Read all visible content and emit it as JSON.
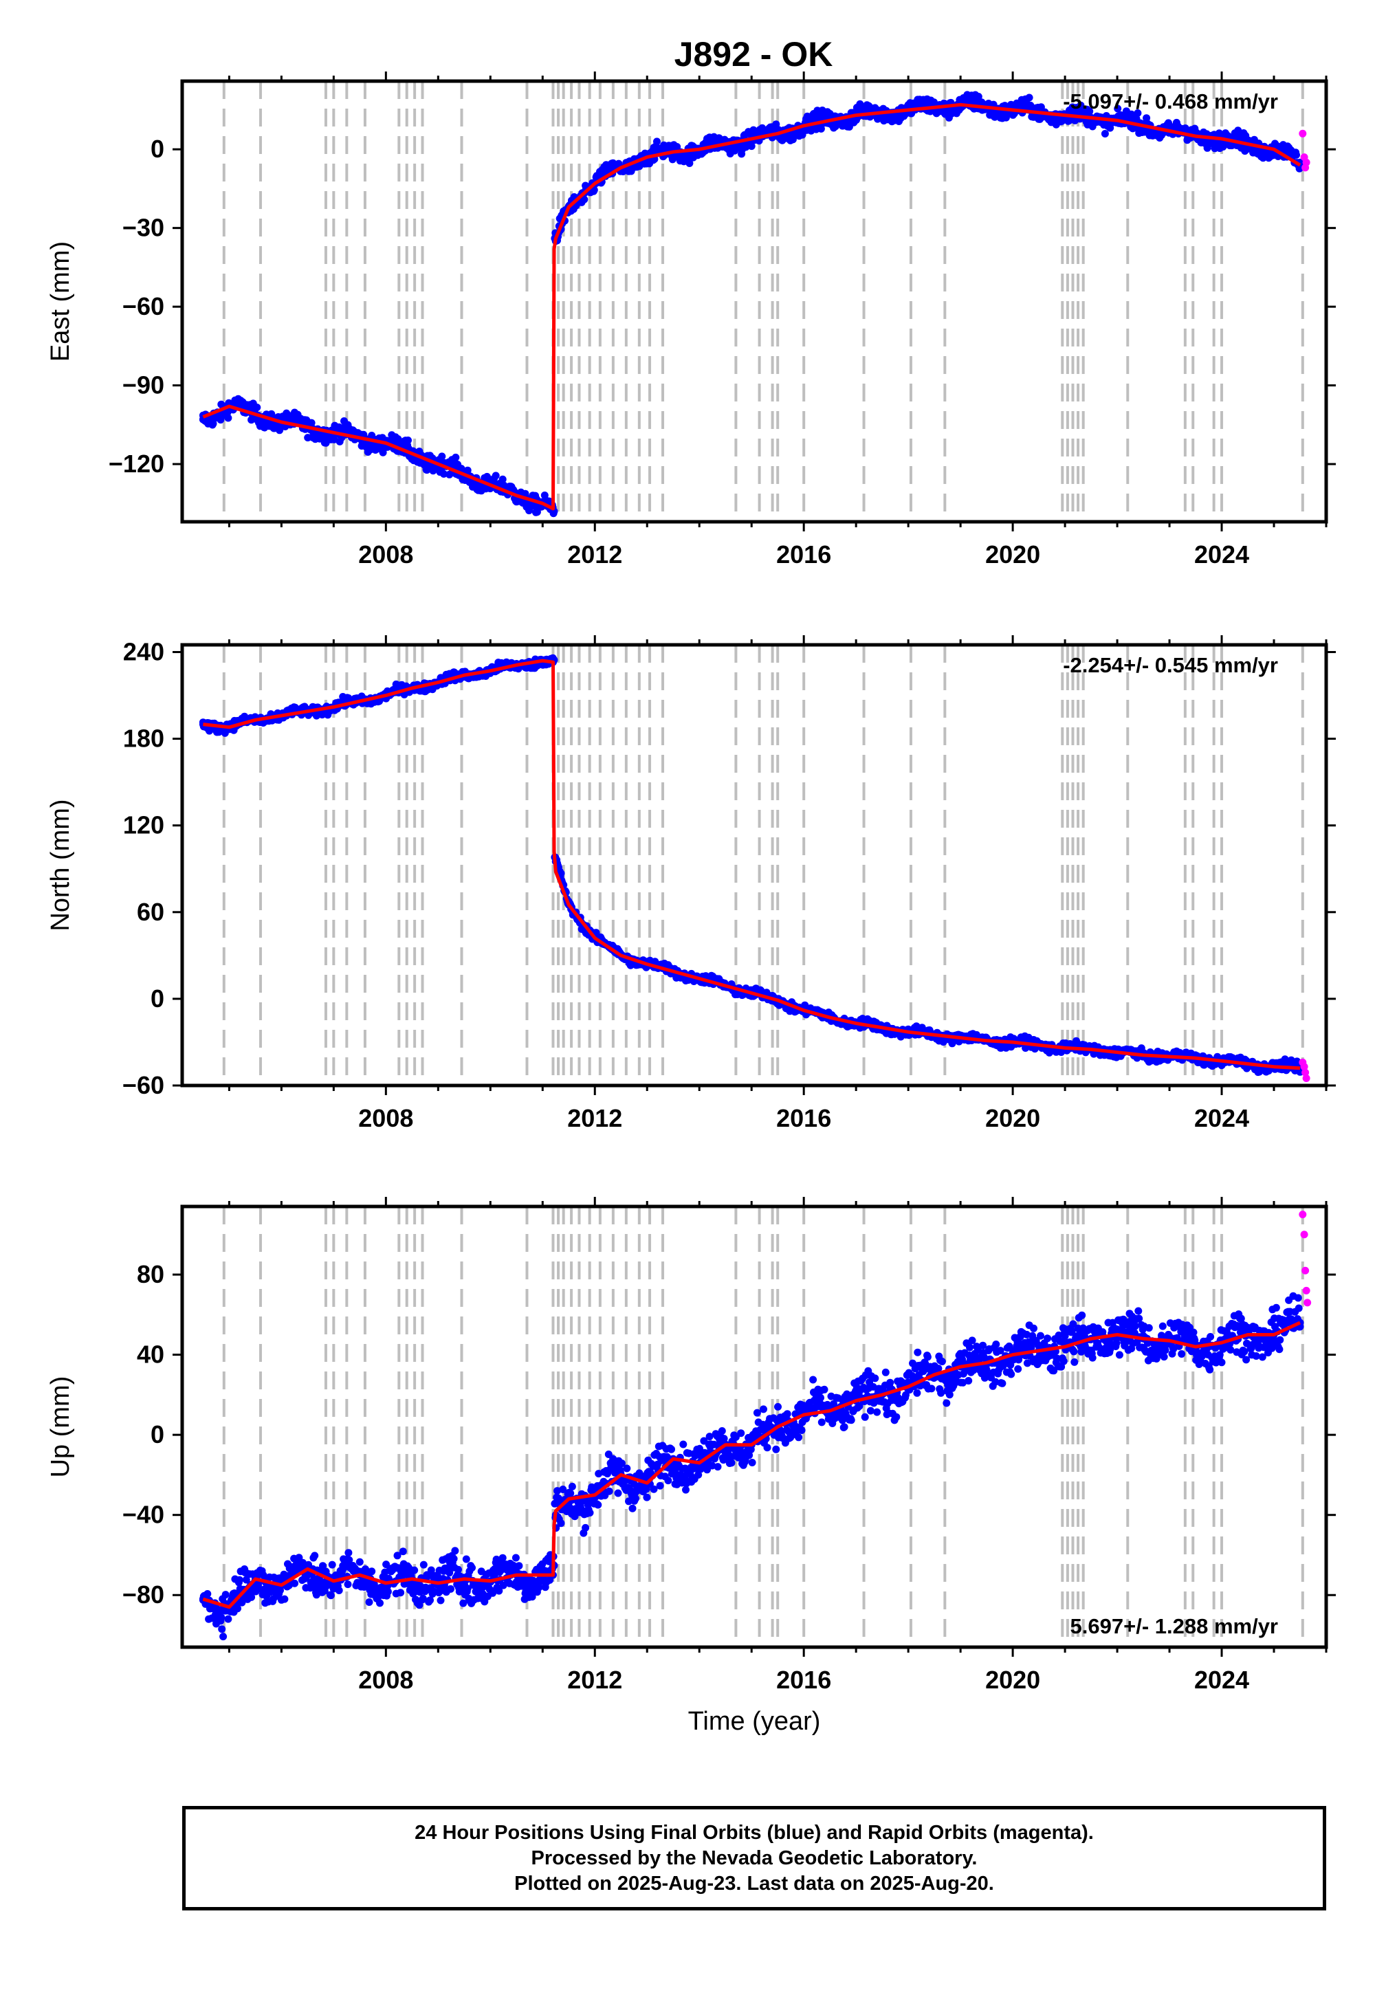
{
  "title": "J892 - OK",
  "colors": {
    "final_orbits": "#0000ff",
    "rapid_orbits": "#ff00ff",
    "model": "#ff0000",
    "event_lines": "#bebebe",
    "frame": "#000000"
  },
  "chart_data": [
    {
      "type": "scatter",
      "name": "east",
      "ylabel": "East (mm)",
      "xlabel": "",
      "xlim": [
        2004.1,
        2026.0
      ],
      "ylim": [
        -142,
        26
      ],
      "xticks": [
        2008,
        2012,
        2016,
        2020,
        2024
      ],
      "yticks": [
        -120,
        -90,
        -60,
        -30,
        0
      ],
      "ytick_labels": [
        "−120",
        "−90",
        "−60",
        "−30",
        "0"
      ],
      "rate_label": "-5.097+/- 0.468 mm/yr",
      "rate_label_position": "top-right",
      "grid": false,
      "step_year": 2011.22,
      "series": [
        {
          "name": "final orbits",
          "kind": "points",
          "x": [
            2004.5,
            2005.0,
            2005.5,
            2006.0,
            2006.5,
            2007.0,
            2007.5,
            2008.0,
            2008.5,
            2009.0,
            2009.5,
            2010.0,
            2010.5,
            2011.0,
            2011.2,
            2011.25,
            2011.5,
            2012.0,
            2012.5,
            2013.0,
            2013.5,
            2014.0,
            2014.5,
            2015.0,
            2015.5,
            2016.0,
            2016.5,
            2017.0,
            2017.5,
            2018.0,
            2018.5,
            2019.0,
            2019.5,
            2020.0,
            2020.5,
            2021.0,
            2021.5,
            2022.0,
            2022.5,
            2023.0,
            2023.5,
            2024.0,
            2024.5,
            2025.0,
            2025.5
          ],
          "y": [
            -103,
            -98,
            -101,
            -104,
            -106,
            -108,
            -110,
            -112,
            -116,
            -120,
            -124,
            -128,
            -132,
            -135,
            -138,
            -35,
            -22,
            -13,
            -7,
            -3,
            -1,
            0,
            2,
            4,
            6,
            9,
            11,
            13,
            14,
            15,
            16,
            17,
            16,
            15,
            14,
            13,
            12,
            11,
            9,
            7,
            5,
            4,
            2,
            0,
            -5
          ]
        },
        {
          "name": "rapid orbits",
          "kind": "points",
          "x": [
            2025.55,
            2025.58,
            2025.6,
            2025.62
          ],
          "y": [
            6,
            -3,
            -7,
            -5
          ]
        },
        {
          "name": "model",
          "kind": "line",
          "x": [
            2004.5,
            2005.0,
            2005.5,
            2006.0,
            2006.5,
            2007.0,
            2007.5,
            2008.0,
            2008.5,
            2009.0,
            2009.5,
            2010.0,
            2010.5,
            2011.0,
            2011.2,
            2011.22,
            2011.25,
            2011.5,
            2012.0,
            2012.5,
            2013.0,
            2013.5,
            2014.0,
            2014.5,
            2015.0,
            2015.5,
            2016.0,
            2016.5,
            2017.0,
            2017.5,
            2018.0,
            2018.5,
            2019.0,
            2019.5,
            2020.0,
            2020.5,
            2021.0,
            2021.5,
            2022.0,
            2022.5,
            2023.0,
            2023.5,
            2024.0,
            2024.5,
            2025.0,
            2025.5
          ],
          "y": [
            -102,
            -98,
            -101,
            -104,
            -106,
            -108,
            -110,
            -112,
            -116,
            -120,
            -124,
            -128,
            -132,
            -135,
            -137,
            -38,
            -34,
            -22,
            -13,
            -7,
            -3,
            -1,
            0,
            2,
            4,
            6,
            9,
            11,
            13,
            14,
            15,
            16,
            17,
            16,
            15,
            14,
            13,
            12,
            11,
            9,
            7,
            5,
            4,
            2,
            0,
            -6
          ]
        }
      ]
    },
    {
      "type": "scatter",
      "name": "north",
      "ylabel": "North (mm)",
      "xlabel": "",
      "xlim": [
        2004.1,
        2026.0
      ],
      "ylim": [
        -60,
        245
      ],
      "xticks": [
        2008,
        2012,
        2016,
        2020,
        2024
      ],
      "yticks": [
        -60,
        0,
        60,
        120,
        180,
        240
      ],
      "ytick_labels": [
        "−60",
        "0",
        "60",
        "120",
        "180",
        "240"
      ],
      "rate_label": "-2.254+/- 0.545 mm/yr",
      "rate_label_position": "top-right",
      "grid": false,
      "step_year": 2011.22,
      "series": [
        {
          "name": "final orbits",
          "kind": "points",
          "x": [
            2004.5,
            2005.0,
            2005.5,
            2006.0,
            2006.5,
            2007.0,
            2007.5,
            2008.0,
            2008.5,
            2009.0,
            2009.5,
            2010.0,
            2010.5,
            2011.0,
            2011.2,
            2011.25,
            2011.5,
            2012.0,
            2012.5,
            2013.0,
            2013.5,
            2014.0,
            2014.5,
            2015.0,
            2015.5,
            2016.0,
            2016.5,
            2017.0,
            2017.5,
            2018.0,
            2018.5,
            2019.0,
            2019.5,
            2020.0,
            2020.5,
            2021.0,
            2021.5,
            2022.0,
            2022.5,
            2023.0,
            2023.5,
            2024.0,
            2024.5,
            2025.0,
            2025.5
          ],
          "y": [
            190,
            188,
            193,
            196,
            199,
            202,
            206,
            210,
            215,
            219,
            224,
            227,
            231,
            234,
            233,
            95,
            65,
            42,
            30,
            24,
            19,
            14,
            9,
            4,
            -1,
            -8,
            -13,
            -17,
            -20,
            -23,
            -25,
            -27,
            -29,
            -30,
            -32,
            -34,
            -35,
            -37,
            -39,
            -40,
            -41,
            -43,
            -45,
            -47,
            -48
          ]
        },
        {
          "name": "rapid orbits",
          "kind": "points",
          "x": [
            2025.55,
            2025.58,
            2025.6,
            2025.62
          ],
          "y": [
            -44,
            -47,
            -51,
            -55
          ]
        },
        {
          "name": "model",
          "kind": "line",
          "x": [
            2004.5,
            2005.0,
            2005.5,
            2006.0,
            2006.5,
            2007.0,
            2007.5,
            2008.0,
            2008.5,
            2009.0,
            2009.5,
            2010.0,
            2010.5,
            2011.0,
            2011.2,
            2011.22,
            2011.25,
            2011.5,
            2012.0,
            2012.5,
            2013.0,
            2013.5,
            2014.0,
            2014.5,
            2015.0,
            2015.5,
            2016.0,
            2016.5,
            2017.0,
            2017.5,
            2018.0,
            2018.5,
            2019.0,
            2019.5,
            2020.0,
            2020.5,
            2021.0,
            2021.5,
            2022.0,
            2022.5,
            2023.0,
            2023.5,
            2024.0,
            2024.5,
            2025.0,
            2025.5
          ],
          "y": [
            190,
            188,
            193,
            196,
            199,
            202,
            206,
            210,
            215,
            219,
            224,
            227,
            231,
            234,
            233,
            102,
            88,
            65,
            42,
            30,
            24,
            19,
            14,
            9,
            4,
            -1,
            -8,
            -13,
            -17,
            -20,
            -23,
            -25,
            -27,
            -29,
            -30,
            -32,
            -34,
            -35,
            -37,
            -39,
            -40,
            -41,
            -43,
            -45,
            -47,
            -48
          ]
        }
      ]
    },
    {
      "type": "scatter",
      "name": "up",
      "ylabel": "Up (mm)",
      "xlabel": "Time (year)",
      "xlim": [
        2004.1,
        2026.0
      ],
      "ylim": [
        -106,
        114
      ],
      "xticks": [
        2008,
        2012,
        2016,
        2020,
        2024
      ],
      "yticks": [
        -80,
        -40,
        0,
        40,
        80
      ],
      "ytick_labels": [
        "−80",
        "−40",
        "0",
        "40",
        "80"
      ],
      "rate_label": "5.697+/- 1.288 mm/yr",
      "rate_label_position": "bottom-right",
      "grid": false,
      "step_year": 2011.22,
      "series": [
        {
          "name": "final orbits",
          "kind": "points",
          "x": [
            2004.5,
            2005.0,
            2005.5,
            2006.0,
            2006.5,
            2007.0,
            2007.5,
            2008.0,
            2008.5,
            2009.0,
            2009.5,
            2010.0,
            2010.5,
            2011.0,
            2011.2,
            2011.25,
            2011.5,
            2012.0,
            2012.5,
            2013.0,
            2013.5,
            2014.0,
            2014.5,
            2015.0,
            2015.5,
            2016.0,
            2016.5,
            2017.0,
            2017.5,
            2018.0,
            2018.5,
            2019.0,
            2019.5,
            2020.0,
            2020.5,
            2021.0,
            2021.5,
            2022.0,
            2022.5,
            2023.0,
            2023.5,
            2024.0,
            2024.5,
            2025.0,
            2025.5
          ],
          "y": [
            -82,
            -86,
            -72,
            -75,
            -67,
            -73,
            -70,
            -74,
            -72,
            -74,
            -72,
            -73,
            -70,
            -70,
            -70,
            -40,
            -34,
            -30,
            -20,
            -24,
            -12,
            -14,
            -5,
            -5,
            4,
            10,
            12,
            17,
            20,
            24,
            30,
            34,
            36,
            40,
            42,
            44,
            48,
            50,
            48,
            47,
            44,
            46,
            50,
            50,
            56
          ]
        },
        {
          "name": "rapid orbits",
          "kind": "points",
          "x": [
            2025.55,
            2025.58,
            2025.6,
            2025.62,
            2025.64
          ],
          "y": [
            110,
            100,
            82,
            72,
            66
          ]
        },
        {
          "name": "model",
          "kind": "line",
          "x": [
            2004.5,
            2005.0,
            2005.5,
            2006.0,
            2006.5,
            2007.0,
            2007.5,
            2008.0,
            2008.5,
            2009.0,
            2009.5,
            2010.0,
            2010.5,
            2011.0,
            2011.2,
            2011.22,
            2011.25,
            2011.5,
            2012.0,
            2012.5,
            2013.0,
            2013.5,
            2014.0,
            2014.5,
            2015.0,
            2015.5,
            2016.0,
            2016.5,
            2017.0,
            2017.5,
            2018.0,
            2018.5,
            2019.0,
            2019.5,
            2020.0,
            2020.5,
            2021.0,
            2021.5,
            2022.0,
            2022.5,
            2023.0,
            2023.5,
            2024.0,
            2024.5,
            2025.0,
            2025.5
          ],
          "y": [
            -82,
            -86,
            -72,
            -75,
            -67,
            -73,
            -70,
            -74,
            -72,
            -74,
            -72,
            -73,
            -70,
            -70,
            -70,
            -45,
            -38,
            -32,
            -30,
            -20,
            -24,
            -12,
            -14,
            -5,
            -5,
            4,
            10,
            12,
            17,
            20,
            24,
            30,
            34,
            36,
            40,
            42,
            44,
            48,
            50,
            48,
            47,
            44,
            46,
            50,
            50,
            56
          ]
        }
      ]
    }
  ],
  "event_years": [
    2004.9,
    2005.6,
    2006.85,
    2007.0,
    2007.25,
    2007.6,
    2008.25,
    2008.4,
    2008.55,
    2008.7,
    2009.45,
    2010.7,
    2011.2,
    2011.3,
    2011.4,
    2011.55,
    2011.7,
    2011.9,
    2012.1,
    2012.35,
    2012.6,
    2012.85,
    2013.05,
    2013.3,
    2014.7,
    2015.15,
    2015.4,
    2015.5,
    2016.0,
    2017.15,
    2018.05,
    2018.7,
    2020.95,
    2021.05,
    2021.15,
    2021.25,
    2021.35,
    2022.2,
    2023.3,
    2023.45,
    2023.85,
    2024.0,
    2025.55
  ],
  "footer": {
    "line1": "24 Hour Positions Using Final Orbits (blue) and Rapid Orbits (magenta).",
    "line2": "Processed by the Nevada Geodetic Laboratory.",
    "line3": "Plotted on 2025-Aug-23. Last data on 2025-Aug-20."
  }
}
